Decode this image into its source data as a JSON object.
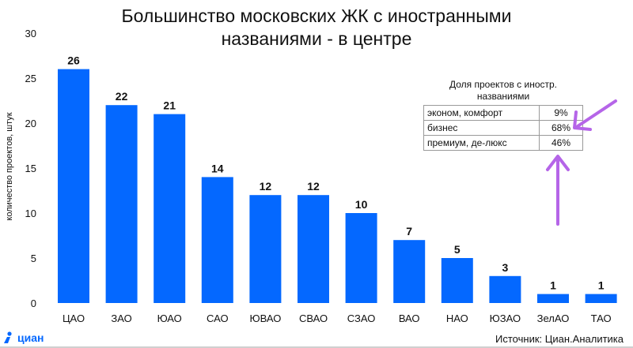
{
  "title_line1": "Большинство московских ЖК с иностранными",
  "title_line2": "названиями - в центре",
  "source": "Источник: Циан.Аналитика",
  "brand": "циан",
  "colors": {
    "bar": "#0468ff",
    "arrow": "#b565e8",
    "brand": "#0468ff"
  },
  "inset": {
    "title_line1": "Доля проектов с иностр.",
    "title_line2": "названиями",
    "rows": [
      {
        "label": "эконом, комфорт",
        "value": "9%"
      },
      {
        "label": "бизнес",
        "value": "68%"
      },
      {
        "label": "премиум, де-люкс",
        "value": "46%"
      }
    ]
  },
  "chart_data": {
    "type": "bar",
    "title": "Большинство московских ЖК с иностранными названиями - в центре",
    "xlabel": "",
    "ylabel": "количество проектов, штук",
    "ylim": [
      0,
      30
    ],
    "yticks": [
      "0",
      "5",
      "10",
      "15",
      "20",
      "25",
      "30"
    ],
    "categories": [
      "ЦАО",
      "ЗАО",
      "ЮАО",
      "САО",
      "ЮВАО",
      "СВАО",
      "СЗАО",
      "ВАО",
      "НАО",
      "ЮЗАО",
      "ЗелАО",
      "ТАО"
    ],
    "values": [
      26,
      22,
      21,
      14,
      12,
      12,
      10,
      7,
      5,
      3,
      1,
      1
    ],
    "grid": false,
    "data_labels": true
  }
}
